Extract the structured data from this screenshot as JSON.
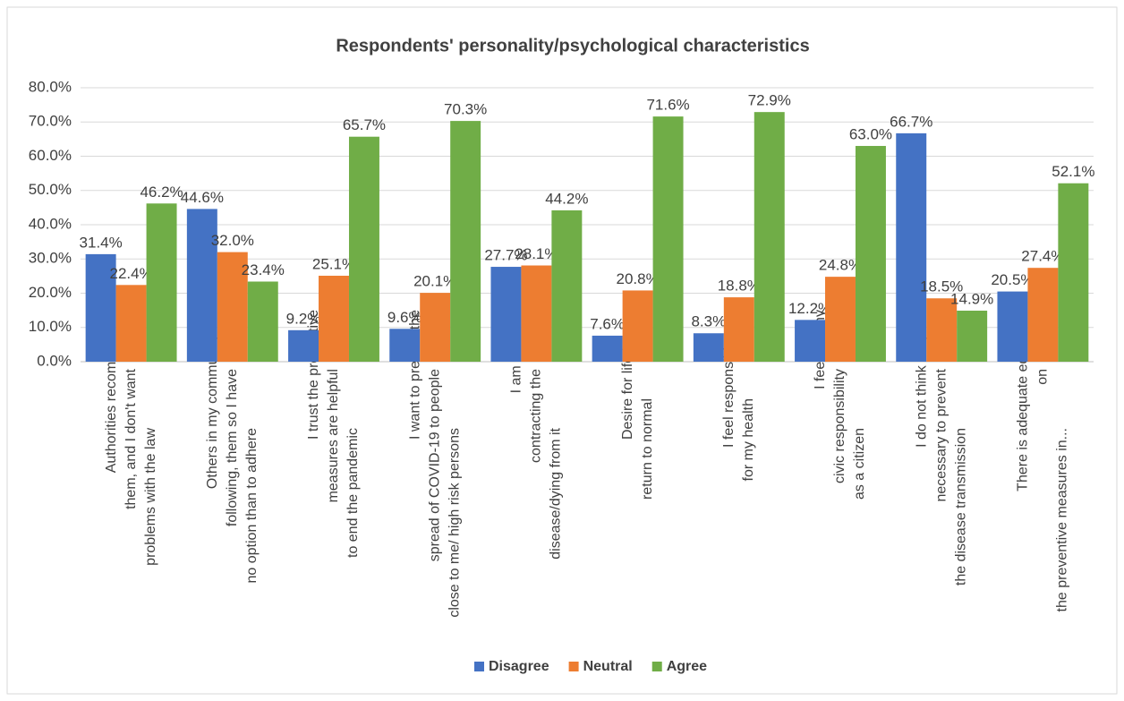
{
  "chart_data": {
    "type": "bar",
    "title": "Respondents' personality/psychological characteristics",
    "categories": [
      [
        "Authorities recommended",
        "them, and I don't want",
        "problems with the law"
      ],
      [
        "Others in my community are",
        "following, them so I have",
        "no option than to adhere"
      ],
      [
        "I trust the preventive",
        "measures are helpful",
        "to end the pandemic"
      ],
      [
        "I want to prevent the",
        "spread of COVID-19 to people",
        "close to me/ high risk persons"
      ],
      [
        "I am afraid of",
        "contracting the",
        "disease/dying from it"
      ],
      [
        "Desire for life to",
        "return to normal"
      ],
      [
        "I feel responsible",
        "for my health"
      ],
      [
        "I feel it is my",
        "civic responsibility",
        "as a citizen"
      ],
      [
        "I do not think they are",
        "necessary to prevent",
        "the disease transmission"
      ],
      [
        "There is adequate education",
        "on",
        "the preventive measures in..."
      ]
    ],
    "series": [
      {
        "name": "Disagree",
        "color": "#4472c4",
        "values": [
          31.4,
          44.6,
          9.2,
          9.6,
          27.7,
          7.6,
          8.3,
          12.2,
          66.7,
          20.5
        ],
        "value_labels": [
          "31.4%",
          "44.6%",
          "9.2%",
          "9.6%",
          "27.7%",
          "7.6%",
          "8.3%",
          "12.2%",
          "66.7%",
          "20.5%"
        ]
      },
      {
        "name": "Neutral",
        "color": "#ed7d31",
        "values": [
          22.4,
          32.0,
          25.1,
          20.1,
          28.1,
          20.8,
          18.8,
          24.8,
          18.5,
          27.4
        ],
        "value_labels": [
          "22.4%",
          "32.0%",
          "25.1%",
          "20.1%",
          "28.1%",
          "20.8%",
          "18.8%",
          "24.8%",
          "18.5%",
          "27.4%"
        ]
      },
      {
        "name": "Agree",
        "color": "#70ad47",
        "values": [
          46.2,
          23.4,
          65.7,
          70.3,
          44.2,
          71.6,
          72.9,
          63.0,
          14.9,
          52.1
        ],
        "value_labels": [
          "46.2%",
          "23.4%",
          "65.7%",
          "70.3%",
          "44.2%",
          "71.6%",
          "72.9%",
          "63.0%",
          "14.9%",
          "52.1%"
        ]
      }
    ],
    "ylim": [
      0,
      80
    ],
    "yticks": [
      {
        "value": 0,
        "label": "0.0%"
      },
      {
        "value": 10,
        "label": "10.0%"
      },
      {
        "value": 20,
        "label": "20.0%"
      },
      {
        "value": 30,
        "label": "30.0%"
      },
      {
        "value": 40,
        "label": "40.0%"
      },
      {
        "value": 50,
        "label": "50.0%"
      },
      {
        "value": 60,
        "label": "60.0%"
      },
      {
        "value": 70,
        "label": "70.0%"
      },
      {
        "value": 80,
        "label": "80.0%"
      }
    ],
    "grid": true,
    "legend": "bottom"
  }
}
